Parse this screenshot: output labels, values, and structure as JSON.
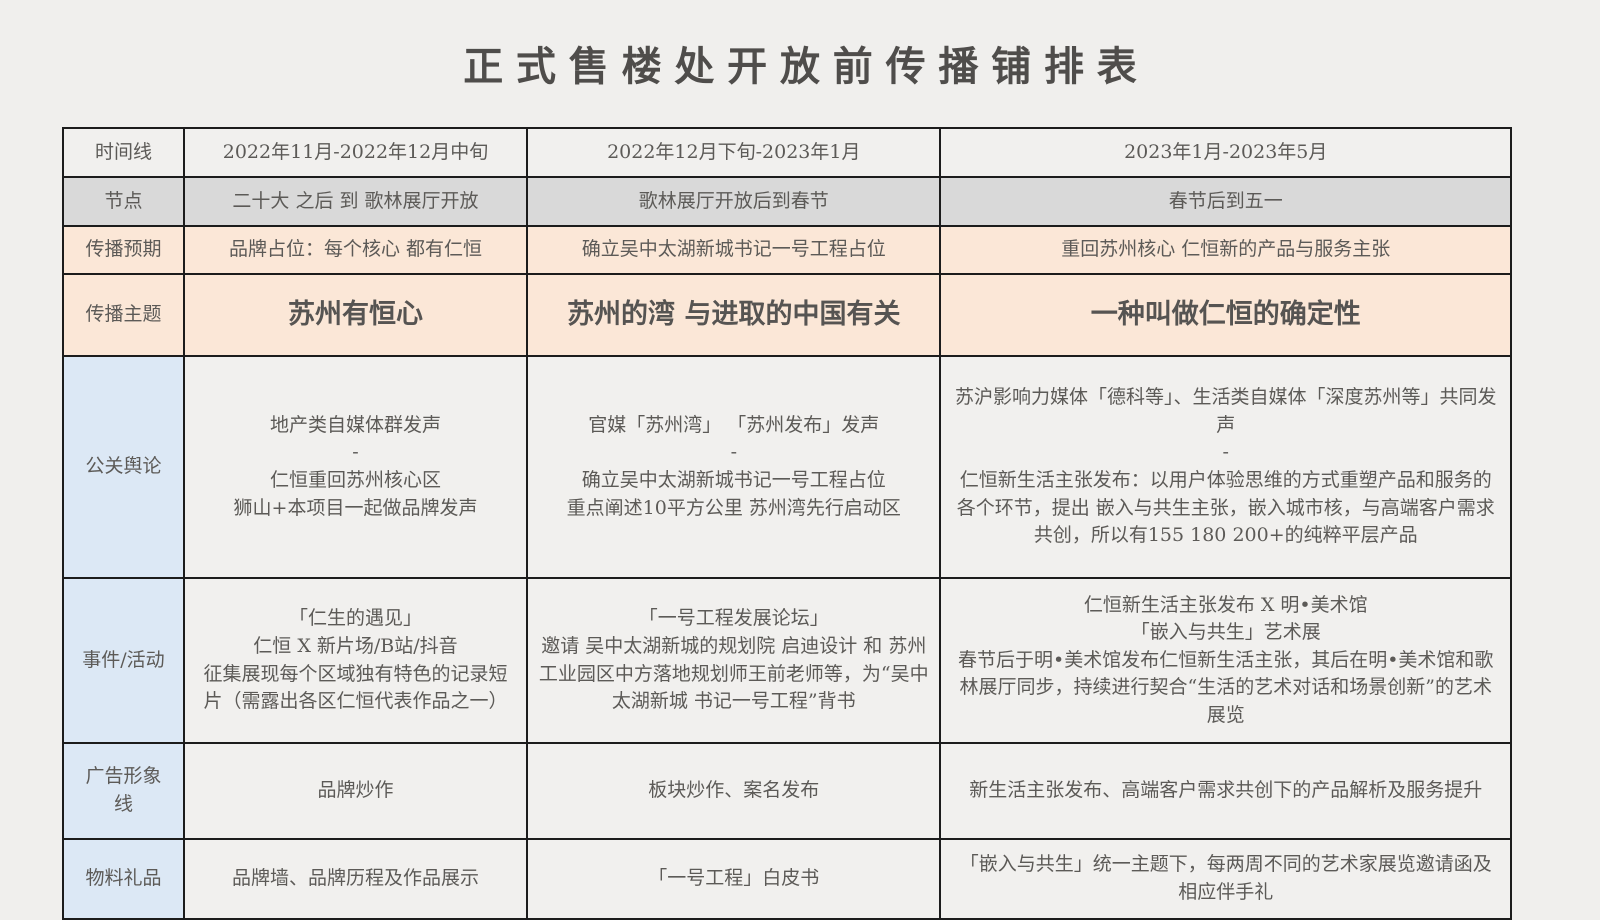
{
  "title": "正式售楼处开放前传播铺排表",
  "colors": {
    "page_background": "#f0efed",
    "cell_background": "#f1f0ee",
    "node_row_gray": "#d9d9d9",
    "expectation_peach": "#fbe7d7",
    "label_blue": "#dce8f5",
    "border": "#1c1c1c",
    "text": "#5c5a57"
  },
  "table": {
    "rows": [
      {
        "label": "时间线",
        "cells": [
          "2022年11月-2022年12月中旬",
          "2022年12月下旬-2023年1月",
          "2023年1月-2023年5月"
        ]
      },
      {
        "label": "节点",
        "cells": [
          "二十大 之后 到 歌林展厅开放",
          "歌林展厅开放后到春节",
          "春节后到五一"
        ]
      },
      {
        "label": "传播预期",
        "cells": [
          "品牌占位：每个核心 都有仁恒",
          "确立吴中太湖新城书记一号工程占位",
          "重回苏州核心 仁恒新的产品与服务主张"
        ]
      },
      {
        "label": "传播主题",
        "cells": [
          "苏州有恒心",
          "苏州的湾 与进取的中国有关",
          "一种叫做仁恒的确定性"
        ]
      },
      {
        "label": "公关舆论",
        "cells": [
          "地产类自媒体群发声\n-\n仁恒重回苏州核心区\n狮山+本项目一起做品牌发声",
          "官媒「苏州湾」 「苏州发布」发声\n-\n确立吴中太湖新城书记一号工程占位\n重点阐述10平方公里 苏州湾先行启动区",
          "苏沪影响力媒体「德科等」、生活类自媒体「深度苏州等」共同发声\n-\n仁恒新生活主张发布：以用户体验思维的方式重塑产品和服务的各个环节，提出 嵌入与共生主张，嵌入城市核，与高端客户需求共创，所以有155 180 200+的纯粹平层产品"
        ]
      },
      {
        "label": "事件/活动",
        "cells": [
          "「仁生的遇见」\n仁恒 X 新片场/B站/抖音\n征集展现每个区域独有特色的记录短片（需露出各区仁恒代表作品之一）",
          "「一号工程发展论坛」\n邀请 吴中太湖新城的规划院 启迪设计 和 苏州工业园区中方落地规划师王前老师等，为“吴中太湖新城 书记一号工程”背书",
          "仁恒新生活主张发布 X 明•美术馆\n「嵌入与共生」艺术展\n春节后于明•美术馆发布仁恒新生活主张，其后在明•美术馆和歌林展厅同步，持续进行契合“生活的艺术对话和场景创新”的艺术展览"
        ]
      },
      {
        "label": "广告形象线",
        "cells": [
          "品牌炒作",
          "板块炒作、案名发布",
          "新生活主张发布、高端客户需求共创下的产品解析及服务提升"
        ]
      },
      {
        "label": "物料礼品",
        "cells": [
          "品牌墙、品牌历程及作品展示",
          "「一号工程」白皮书",
          "「嵌入与共生」统一主题下，每两周不同的艺术家展览邀请函及相应伴手礼"
        ]
      }
    ]
  }
}
